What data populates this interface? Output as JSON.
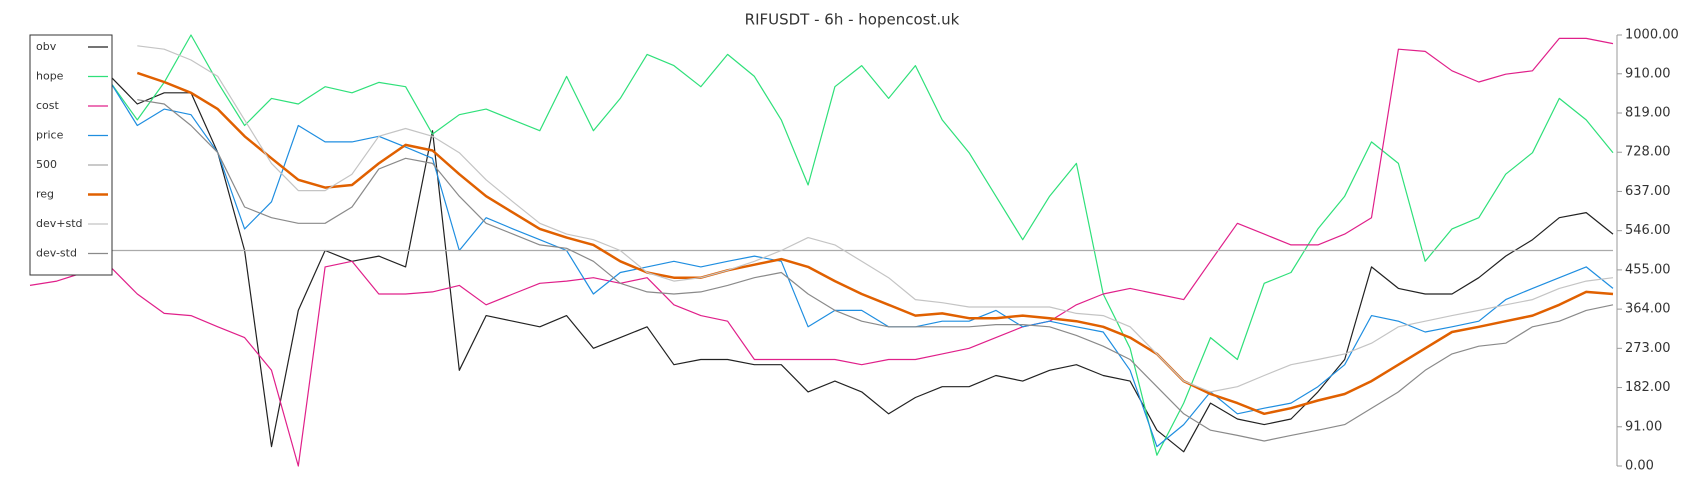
{
  "chart_data": {
    "type": "line",
    "title": "RIFUSDT - 6h - hopencost.uk",
    "ylim": [
      0,
      1000
    ],
    "yticks": [
      {
        "value": 0,
        "label": "0.00"
      },
      {
        "value": 91,
        "label": "91.00"
      },
      {
        "value": 182,
        "label": "182.00"
      },
      {
        "value": 273,
        "label": "273.00"
      },
      {
        "value": 364,
        "label": "364.00"
      },
      {
        "value": 455,
        "label": "455.00"
      },
      {
        "value": 546,
        "label": "546.00"
      },
      {
        "value": 637,
        "label": "637.00"
      },
      {
        "value": 728,
        "label": "728.00"
      },
      {
        "value": 819,
        "label": "819.00"
      },
      {
        "value": 910,
        "label": "910.00"
      },
      {
        "value": 1000,
        "label": "1000.00"
      }
    ],
    "legend": "upper left",
    "series": [
      {
        "name": "obv",
        "color": "#222222",
        "width": 1.2,
        "values": [
          null,
          null,
          null,
          904,
          840,
          866,
          866,
          727,
          500,
          45,
          361,
          500,
          475,
          487,
          462,
          778,
          222,
          349,
          336,
          323,
          349,
          273,
          298,
          323,
          235,
          247,
          247,
          235,
          235,
          172,
          197,
          172,
          121,
          159,
          184,
          184,
          210,
          197,
          222,
          235,
          210,
          197,
          83,
          33,
          146,
          109,
          96,
          109,
          172,
          247,
          462,
          412,
          399,
          399,
          437,
          487,
          525,
          576,
          588,
          538
        ]
      },
      {
        "name": "hope",
        "color": "#2fe07a",
        "width": 1.2,
        "values": [
          null,
          null,
          null,
          890,
          803,
          890,
          1000,
          890,
          790,
          853,
          840,
          880,
          866,
          890,
          880,
          770,
          815,
          828,
          803,
          778,
          904,
          778,
          853,
          955,
          929,
          880,
          955,
          904,
          803,
          652,
          880,
          929,
          853,
          929,
          803,
          727,
          626,
          525,
          626,
          702,
          399,
          273,
          25,
          146,
          298,
          247,
          424,
          449,
          550,
          626,
          752,
          702,
          475,
          550,
          576,
          677,
          727,
          853,
          803,
          727
        ]
      },
      {
        "name": "cost",
        "color": "#e0208a",
        "width": 1.2,
        "values": [
          419,
          429,
          449,
          462,
          399,
          354,
          349,
          323,
          298,
          222,
          0,
          462,
          475,
          399,
          399,
          404,
          419,
          374,
          399,
          424,
          429,
          437,
          424,
          437,
          374,
          349,
          336,
          247,
          247,
          247,
          247,
          235,
          247,
          247,
          260,
          273,
          298,
          323,
          336,
          374,
          399,
          412,
          399,
          386,
          475,
          563,
          538,
          513,
          513,
          538,
          576,
          967,
          962,
          917,
          891,
          909,
          917,
          992,
          992,
          980
        ]
      },
      {
        "name": "price",
        "color": "#1f8ee0",
        "width": 1.2,
        "values": [
          null,
          null,
          null,
          890,
          790,
          828,
          815,
          727,
          550,
          613,
          790,
          752,
          752,
          765,
          740,
          714,
          500,
          576,
          550,
          525,
          500,
          399,
          449,
          462,
          475,
          462,
          475,
          487,
          475,
          323,
          361,
          361,
          323,
          323,
          336,
          336,
          361,
          323,
          336,
          323,
          311,
          222,
          45,
          96,
          172,
          121,
          134,
          146,
          184,
          235,
          349,
          336,
          311,
          323,
          336,
          386,
          412,
          437,
          462,
          412
        ]
      },
      {
        "name": "500",
        "color": "#aaaaaa",
        "width": 1.2,
        "values": [
          500,
          500,
          500,
          500,
          500,
          500,
          500,
          500,
          500,
          500,
          500,
          500,
          500,
          500,
          500,
          500,
          500,
          500,
          500,
          500,
          500,
          500,
          500,
          500,
          500,
          500,
          500,
          500,
          500,
          500,
          500,
          500,
          500,
          500,
          500,
          500,
          500,
          500,
          500,
          500,
          500,
          500,
          500,
          500,
          500,
          500,
          500,
          500,
          500,
          500,
          500,
          500,
          500,
          500,
          500,
          500,
          500,
          500,
          500,
          500
        ]
      },
      {
        "name": "reg",
        "color": "#e06000",
        "width": 2.5,
        "values": [
          null,
          null,
          null,
          null,
          912,
          891,
          866,
          828,
          765,
          714,
          664,
          646,
          652,
          702,
          745,
          732,
          677,
          626,
          588,
          550,
          530,
          513,
          475,
          449,
          437,
          437,
          454,
          467,
          480,
          462,
          429,
          399,
          374,
          349,
          354,
          343,
          343,
          349,
          343,
          336,
          323,
          298,
          260,
          197,
          167,
          146,
          121,
          134,
          152,
          167,
          197,
          235,
          273,
          311,
          323,
          336,
          349,
          374,
          404,
          399
        ]
      },
      {
        "name": "dev+std",
        "color": "#c4c4c4",
        "width": 1.2,
        "values": [
          null,
          null,
          null,
          null,
          975,
          967,
          942,
          904,
          803,
          702,
          639,
          639,
          677,
          765,
          783,
          765,
          727,
          664,
          613,
          563,
          538,
          525,
          500,
          449,
          429,
          437,
          454,
          475,
          500,
          530,
          513,
          475,
          437,
          386,
          379,
          369,
          369,
          369,
          369,
          354,
          349,
          323,
          260,
          197,
          172,
          184,
          210,
          235,
          247,
          260,
          285,
          323,
          336,
          349,
          361,
          374,
          386,
          412,
          429,
          437
        ]
      },
      {
        "name": "dev-std",
        "color": "#8a8a8a",
        "width": 1.2,
        "values": [
          null,
          null,
          null,
          null,
          850,
          840,
          790,
          727,
          601,
          576,
          563,
          563,
          601,
          689,
          714,
          702,
          626,
          563,
          538,
          513,
          505,
          475,
          424,
          404,
          399,
          404,
          419,
          437,
          449,
          399,
          361,
          336,
          323,
          323,
          323,
          323,
          328,
          328,
          323,
          303,
          278,
          247,
          184,
          121,
          83,
          71,
          58,
          71,
          83,
          96,
          134,
          172,
          222,
          260,
          278,
          285,
          323,
          336,
          361,
          374
        ]
      }
    ]
  }
}
